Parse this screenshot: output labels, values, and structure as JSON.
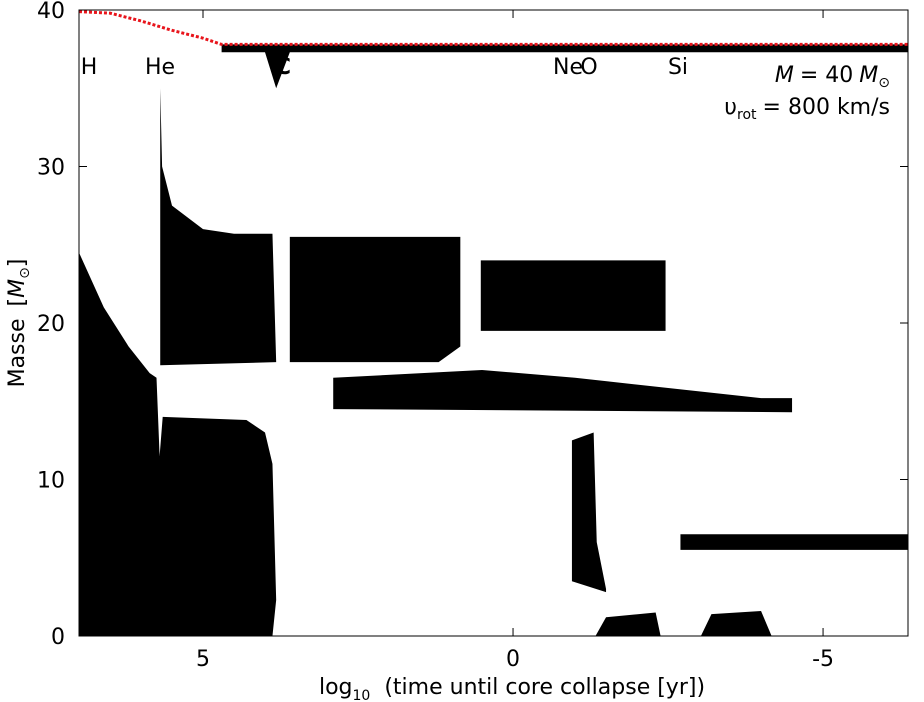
{
  "chart_data": {
    "type": "kippenhahn",
    "x_label": {
      "log": "log",
      "base": "10",
      "rest": "(time until core collapse   [yr])"
    },
    "y_label": {
      "text": "Masse",
      "open": "[",
      "unit": "M",
      "unit_sub": "⊙",
      "close": "]"
    },
    "stage_labels": [
      "H",
      "He",
      "C",
      "Ne",
      "O",
      "Si"
    ],
    "mass_label": {
      "symbol": "M",
      "eq": "= 40",
      "unit": "M",
      "unit_sub": "⊙"
    },
    "rotation_label": {
      "symbol": "υ",
      "sub": "rot",
      "eq": "= 800 km/s"
    },
    "xlim": [
      7,
      -6.37
    ],
    "ylim": [
      0,
      40
    ],
    "xticks": [
      5,
      0,
      -5
    ],
    "yticks": [
      0,
      10,
      20,
      30,
      40
    ],
    "region_color": "#000000",
    "regions": [
      {
        "x": [
          7,
          7,
          6.6,
          6.2,
          5.86,
          5.75,
          5.7,
          5.65,
          4.3,
          4.0,
          3.88,
          3.82,
          3.88
        ],
        "y": [
          0,
          24.5,
          21,
          18.5,
          16.8,
          16.5,
          11.5,
          14,
          13.8,
          13,
          11,
          2.3,
          0
        ]
      },
      {
        "x": [
          5.69,
          5.69,
          5.66,
          5.5,
          5,
          4.5,
          3.88,
          3.82
        ],
        "y": [
          17.3,
          35,
          30,
          27.5,
          26,
          25.7,
          25.7,
          17.5
        ]
      },
      {
        "x": [
          3.6,
          3.6,
          0.85,
          0.85,
          1.2
        ],
        "y": [
          17.5,
          25.5,
          25.5,
          18.5,
          17.5
        ]
      },
      {
        "x": [
          -0.95,
          -0.95,
          -1.3,
          -1.35,
          -1.5,
          -1.5
        ],
        "y": [
          3.5,
          12.5,
          13,
          6,
          3,
          2.8
        ]
      },
      {
        "x": [
          2.9,
          2.9,
          0.5,
          -1,
          -4,
          -4.5,
          -4.5,
          2.9
        ],
        "y": [
          14.5,
          16.5,
          17,
          16.5,
          15.2,
          15.2,
          14.3,
          14.5
        ]
      },
      {
        "x": [
          -1.33,
          -1.5,
          -2.3,
          -2.38,
          -1.33
        ],
        "y": [
          0,
          1.2,
          1.5,
          0,
          0
        ]
      },
      {
        "x": [
          -3.03,
          -3.2,
          -4.0,
          -4.17,
          -3.03
        ],
        "y": [
          0,
          1.4,
          1.6,
          0,
          0
        ]
      },
      {
        "x": [
          0.52,
          0.52,
          -2.46,
          -2.46,
          0.52
        ],
        "y": [
          19.5,
          24,
          24,
          19.5,
          19.5
        ]
      },
      {
        "x": [
          4.7,
          4.7,
          -6.37,
          -6.37,
          4.0,
          3.82,
          3.6
        ],
        "y": [
          37.3,
          37.8,
          37.8,
          37.3,
          37.3,
          35,
          37.3
        ]
      },
      {
        "x": [
          -2.7,
          -2.7,
          -6.37,
          -6.37
        ],
        "y": [
          5.5,
          6.5,
          6.5,
          5.5
        ]
      }
    ],
    "total_mass": {
      "color": "#e8141b",
      "x": [
        7,
        6.5,
        6,
        5.5,
        5,
        4.7,
        -6.37
      ],
      "y": [
        39.9,
        39.8,
        39.3,
        38.7,
        38.2,
        37.8,
        37.8
      ]
    }
  }
}
